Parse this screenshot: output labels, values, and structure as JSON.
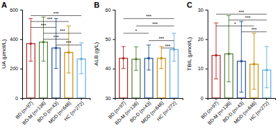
{
  "chart_data": [
    {
      "type": "bar",
      "title": "A",
      "ylabel": "UA (μmol/L)",
      "categories": [
        "BD (n=97)",
        "BD-M (n=136)",
        "BD-D (n=43)",
        "MDD (n=646)",
        "HC (n=272)"
      ],
      "values": [
        370,
        380,
        340,
        310,
        265
      ],
      "error_low": [
        120,
        130,
        140,
        140,
        100
      ],
      "error_high": [
        170,
        170,
        200,
        180,
        110
      ],
      "colors": [
        "#b22222",
        "#4a7c2f",
        "#1e4d99",
        "#cc8800",
        "#5aaddc"
      ],
      "ylim": [
        0,
        600
      ],
      "yticks": [
        0,
        200,
        400,
        600
      ],
      "annotations": [
        {
          "from": "BD (n=97)",
          "to": "HC (n=272)",
          "y": 560,
          "label": "***"
        },
        {
          "from": "BD (n=97)",
          "to": "MDD (n=646)",
          "y": 520,
          "label": "***"
        },
        {
          "from": "BD (n=97)",
          "to": "BD-D (n=43)",
          "y": 480,
          "label": "***"
        },
        {
          "from": "BD-M (n=136)",
          "to": "HC (n=272)",
          "y": 440,
          "label": "***"
        },
        {
          "from": "BD-M (n=136)",
          "to": "MDD (n=646)",
          "y": 400,
          "label": "***"
        },
        {
          "from": "BD-D (n=43)",
          "to": "HC (n=272)",
          "y": 360,
          "label": "***"
        }
      ]
    },
    {
      "type": "bar",
      "title": "B",
      "ylabel": "ALB (g/L)",
      "categories": [
        "BD (n=97)",
        "BD-M (n=136)",
        "BD-D (n=43)",
        "MDD (n=646)",
        "HC (n=272)"
      ],
      "values": [
        43.5,
        43.2,
        43.5,
        43.5,
        46.5
      ],
      "error_low": [
        3.5,
        3.8,
        4.0,
        3.5,
        4.0
      ],
      "error_high": [
        4.0,
        4.2,
        4.5,
        4.0,
        5.5
      ],
      "colors": [
        "#b22222",
        "#4a7c2f",
        "#1e4d99",
        "#cc8800",
        "#5aaddc"
      ],
      "ylim": [
        30,
        60
      ],
      "yticks": [
        30,
        40,
        50,
        60
      ],
      "annotations": [
        {
          "from": "BD (n=97)",
          "to": "HC (n=272)",
          "y": 57,
          "label": "***"
        },
        {
          "from": "BD-M (n=136)",
          "to": "HC (n=272)",
          "y": 54.5,
          "label": "***"
        },
        {
          "from": "BD (n=97)",
          "to": "BD-D (n=43)",
          "y": 52,
          "label": "*"
        },
        {
          "from": "BD-D (n=43)",
          "to": "HC (n=272)",
          "y": 49.5,
          "label": "***"
        },
        {
          "from": "MDD (n=646)",
          "to": "HC (n=272)",
          "y": 47,
          "label": "***"
        }
      ]
    },
    {
      "type": "bar",
      "title": "C",
      "ylabel": "TBIL (μmol/L)",
      "categories": [
        "BD (n=97)",
        "BD-M (n=136)",
        "BD-D (n=43)",
        "MDD (n=646)",
        "HC (n=272)"
      ],
      "values": [
        14.5,
        15.0,
        12.5,
        11.5,
        9.5
      ],
      "error_low": [
        8.0,
        9.5,
        10.5,
        8.5,
        6.0
      ],
      "error_high": [
        11.0,
        13.0,
        13.5,
        10.5,
        8.0
      ],
      "colors": [
        "#b22222",
        "#4a7c2f",
        "#1e4d99",
        "#cc8800",
        "#5aaddc"
      ],
      "ylim": [
        0,
        30
      ],
      "yticks": [
        0,
        10,
        20,
        30
      ],
      "annotations": [
        {
          "from": "BD (n=97)",
          "to": "HC (n=272)",
          "y": 28.5,
          "label": "***"
        },
        {
          "from": "BD-M (n=136)",
          "to": "HC (n=272)",
          "y": 26.5,
          "label": "***"
        },
        {
          "from": "BD (n=97)",
          "to": "MDD (n=646)",
          "y": 24.5,
          "label": "*"
        },
        {
          "from": "BD-D (n=43)",
          "to": "HC (n=272)",
          "y": 22.5,
          "label": "***"
        }
      ]
    }
  ]
}
